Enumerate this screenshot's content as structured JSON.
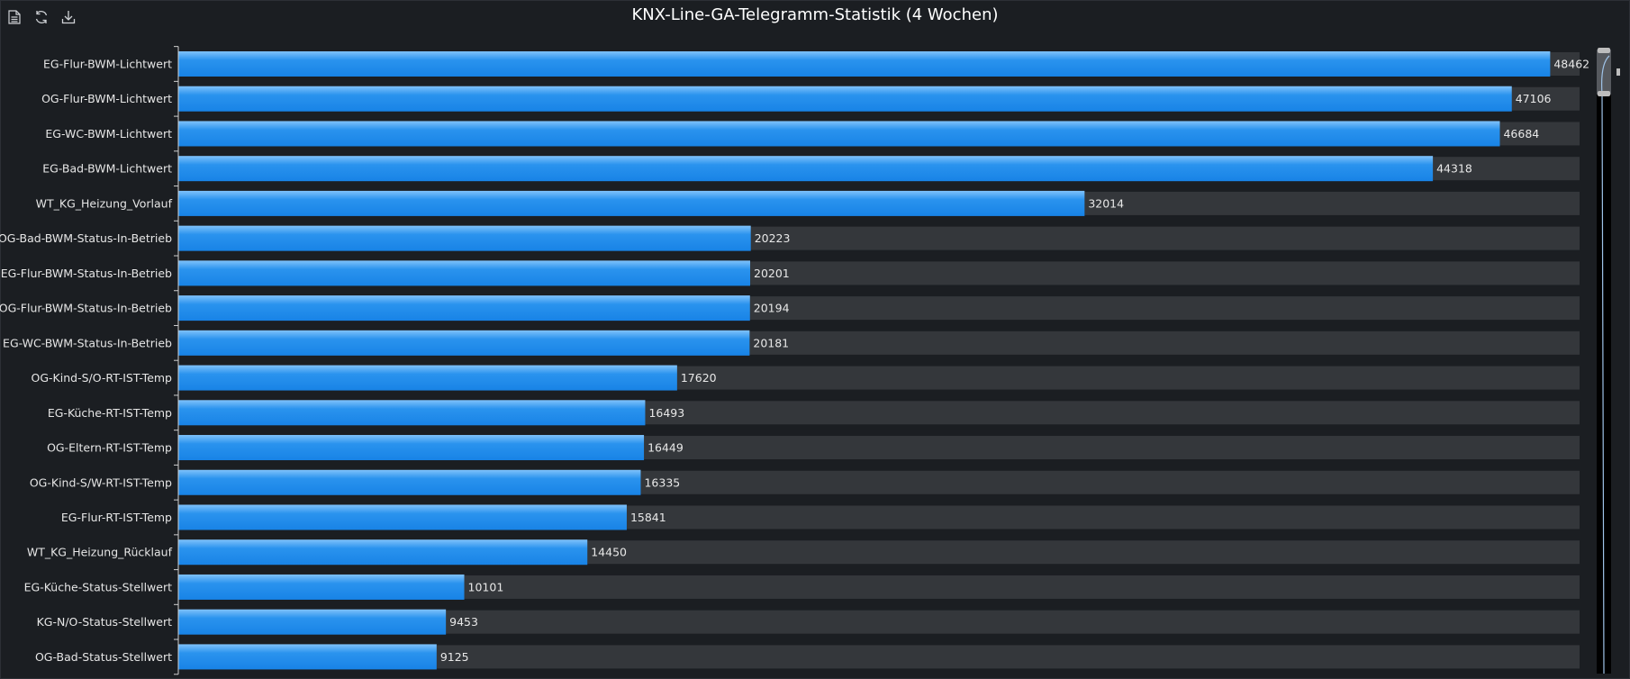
{
  "toolbar": {
    "items": [
      {
        "name": "data-view-icon",
        "label": "Data view"
      },
      {
        "name": "restore-icon",
        "label": "Restore"
      },
      {
        "name": "save-image-icon",
        "label": "Save as image"
      }
    ]
  },
  "colors": {
    "background": "#1b1e22",
    "bar": "#1e8bea",
    "bar_track": "#34373b",
    "text": "#e6e6e6"
  },
  "chart_data": {
    "type": "bar",
    "orientation": "horizontal",
    "title": "KNX-Line-GA-Telegramm-Statistik (4 Wochen)",
    "categories": [
      "EG-Flur-BWM-Lichtwert",
      "OG-Flur-BWM-Lichtwert",
      "EG-WC-BWM-Lichtwert",
      "EG-Bad-BWM-Lichtwert",
      "WT_KG_Heizung_Vorlauf",
      "OG-Bad-BWM-Status-In-Betrieb",
      "EG-Flur-BWM-Status-In-Betrieb",
      "OG-Flur-BWM-Status-In-Betrieb",
      "EG-WC-BWM-Status-In-Betrieb",
      "OG-Kind-S/O-RT-IST-Temp",
      "EG-Küche-RT-IST-Temp",
      "OG-Eltern-RT-IST-Temp",
      "OG-Kind-S/W-RT-IST-Temp",
      "EG-Flur-RT-IST-Temp",
      "WT_KG_Heizung_Rücklauf",
      "EG-Küche-Status-Stellwert",
      "KG-N/O-Status-Stellwert",
      "OG-Bad-Status-Stellwert"
    ],
    "values": [
      48462,
      47106,
      46684,
      44318,
      32014,
      20223,
      20201,
      20194,
      20181,
      17620,
      16493,
      16449,
      16335,
      15841,
      14450,
      10101,
      9453,
      9125
    ],
    "xlim": [
      0,
      49500
    ],
    "data_labels": true,
    "background_bars": true,
    "datazoom_slider": true
  }
}
